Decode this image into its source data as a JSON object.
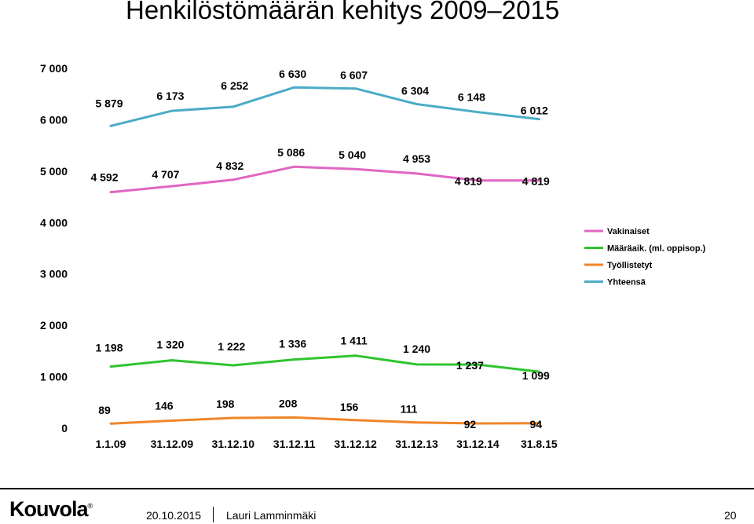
{
  "slide": {
    "title": "Henkilöstömäärän kehitys 2009–2015"
  },
  "footer": {
    "logo_text": "Kouvola",
    "logo_mark": "®",
    "date": "20.10.2015",
    "author": "Lauri Lamminmäki",
    "page_number": "20"
  },
  "chart_data": {
    "type": "line",
    "title": "",
    "xlabel": "",
    "ylabel": "",
    "categories": [
      "1.1.09",
      "31.12.09",
      "31.12.10",
      "31.12.11",
      "31.12.12",
      "31.12.13",
      "31.12.14",
      "31.8.15"
    ],
    "ylim": [
      0,
      7000
    ],
    "yticks": [
      0,
      1000,
      2000,
      3000,
      4000,
      5000,
      6000,
      7000
    ],
    "ytick_labels": [
      "0",
      "1 000",
      "2 000",
      "3 000",
      "4 000",
      "5 000",
      "6 000",
      "7 000"
    ],
    "grid": false,
    "legend_position": "right",
    "series": [
      {
        "name": "Vakinaiset",
        "color": "#e066c2",
        "values": [
          4592,
          4707,
          4832,
          5086,
          5040,
          4953,
          4819,
          4819
        ],
        "labels": [
          "4 592",
          "4 707",
          "4 832",
          "5 086",
          "5 040",
          "4 953",
          "4 819",
          "4 819"
        ]
      },
      {
        "name": "Määräaik. (ml. oppisop.)",
        "color": "#2fc42f",
        "values": [
          1198,
          1320,
          1222,
          1336,
          1411,
          1240,
          1237,
          1099
        ],
        "labels": [
          "1 198",
          "1 320",
          "1 222",
          "1 336",
          "1 411",
          "1 240",
          "1 237",
          "1 099"
        ]
      },
      {
        "name": "Työllistetyt",
        "color": "#f0862a",
        "values": [
          89,
          146,
          198,
          208,
          156,
          111,
          92,
          94
        ],
        "labels": [
          "89",
          "146",
          "198",
          "208",
          "156",
          "111",
          "92",
          "94"
        ]
      },
      {
        "name": "Yhteensä",
        "color": "#4bacc6",
        "values": [
          5879,
          6173,
          6252,
          6630,
          6607,
          6304,
          6148,
          6012
        ],
        "labels": [
          "5 879",
          "6 173",
          "6 252",
          "6 630",
          "6 607",
          "6 304",
          "6 148",
          "6 012"
        ]
      }
    ]
  }
}
